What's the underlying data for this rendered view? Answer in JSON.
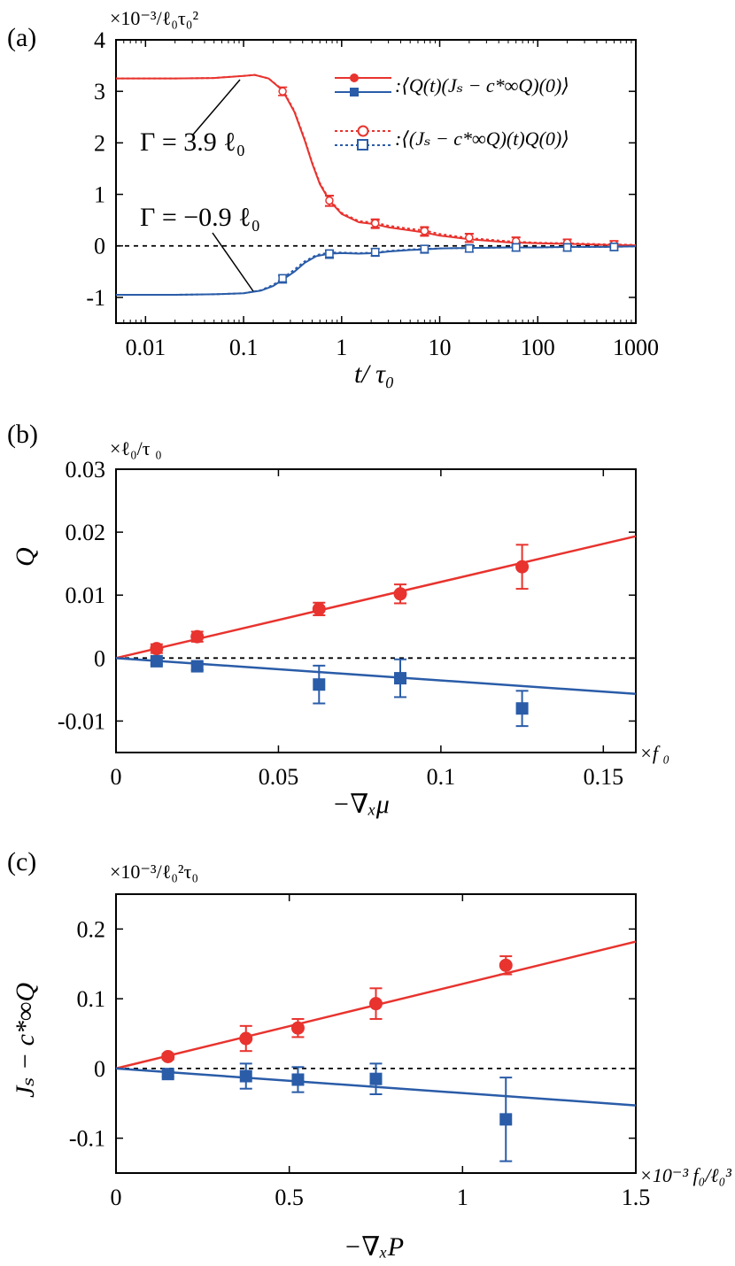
{
  "colors": {
    "red": "#e8332e",
    "blue": "#2a5ca8"
  },
  "chart_data": [
    {
      "panel_label": "(a)",
      "type": "line",
      "unit_label": "×10⁻³/ℓ₀τ₀²",
      "xlabel": "t/ τ₀",
      "xscale": "log",
      "xlim": [
        0.005,
        1000
      ],
      "ylim": [
        -1.5,
        4
      ],
      "xticks": [
        0.01,
        0.1,
        1,
        10,
        100,
        1000
      ],
      "xtick_labels": [
        "0.01",
        "0.1",
        "1",
        "10",
        "100",
        "1000"
      ],
      "yticks": [
        -1,
        0,
        1,
        2,
        3,
        4
      ],
      "ytick_labels": [
        "-1",
        "0",
        "1",
        "2",
        "3",
        "4"
      ],
      "legend": [
        ":⟨Q(t)(Jₛ − c*∞Q)(0)⟩",
        ":⟨(Jₛ − c*∞Q)(t)Q(0)⟩"
      ],
      "annotations": [
        "Γ = 3.9 ℓ₀",
        "Γ = −0.9 ℓ₀"
      ],
      "series": [
        {
          "color": "red",
          "style": "solid",
          "x": [
            0.005,
            0.02,
            0.05,
            0.1,
            0.13,
            0.18,
            0.25,
            0.33,
            0.42,
            0.5,
            0.6,
            0.75,
            1,
            1.5,
            2.2,
            3,
            5,
            7,
            10,
            20,
            50,
            100,
            200,
            500,
            1000
          ],
          "y": [
            3.25,
            3.25,
            3.26,
            3.3,
            3.32,
            3.25,
            3.02,
            2.6,
            2.05,
            1.6,
            1.2,
            0.88,
            0.62,
            0.46,
            0.42,
            0.36,
            0.3,
            0.26,
            0.2,
            0.13,
            0.07,
            0.05,
            0.04,
            0.02,
            0.01
          ],
          "marker_x": [
            0.25,
            0.75,
            2.2,
            7,
            20,
            60,
            200,
            600
          ],
          "marker_y": [
            3.0,
            0.87,
            0.42,
            0.27,
            0.15,
            0.08,
            0.05,
            0.02
          ],
          "marker_err": [
            0.08,
            0.1,
            0.08,
            0.08,
            0.08,
            0.08,
            0.07,
            0.07
          ]
        },
        {
          "color": "red",
          "style": "dotted",
          "x": [
            0.005,
            0.02,
            0.05,
            0.1,
            0.13,
            0.18,
            0.25,
            0.33,
            0.42,
            0.5,
            0.6,
            0.75,
            1,
            1.5,
            2.2,
            3,
            5,
            7,
            10,
            20,
            50,
            100,
            200,
            500,
            1000
          ],
          "y": [
            3.25,
            3.25,
            3.26,
            3.3,
            3.32,
            3.25,
            3.03,
            2.62,
            2.07,
            1.62,
            1.22,
            0.9,
            0.64,
            0.48,
            0.45,
            0.39,
            0.33,
            0.3,
            0.23,
            0.15,
            0.09,
            0.06,
            0.05,
            0.03,
            0.02
          ],
          "marker_x": [
            0.25,
            0.75,
            2.2,
            7,
            20,
            60,
            200,
            600
          ],
          "marker_y": [
            3.0,
            0.88,
            0.44,
            0.29,
            0.16,
            0.09,
            0.06,
            0.03
          ],
          "marker_err": [
            0.08,
            0.1,
            0.08,
            0.08,
            0.08,
            0.08,
            0.07,
            0.07
          ]
        },
        {
          "color": "blue",
          "style": "solid",
          "x": [
            0.005,
            0.02,
            0.05,
            0.1,
            0.15,
            0.2,
            0.25,
            0.33,
            0.42,
            0.55,
            0.75,
            1,
            1.5,
            2.2,
            3,
            5,
            7,
            10,
            20,
            50,
            100,
            200,
            500,
            1000
          ],
          "y": [
            -0.95,
            -0.95,
            -0.94,
            -0.92,
            -0.87,
            -0.78,
            -0.66,
            -0.5,
            -0.33,
            -0.2,
            -0.15,
            -0.14,
            -0.15,
            -0.14,
            -0.11,
            -0.08,
            -0.07,
            -0.05,
            -0.04,
            -0.03,
            -0.03,
            -0.02,
            -0.02,
            -0.01
          ],
          "marker_x": [
            0.25,
            0.75,
            2.2,
            7,
            20,
            60,
            200,
            600
          ],
          "marker_y": [
            -0.65,
            -0.17,
            -0.13,
            -0.07,
            -0.05,
            -0.03,
            -0.03,
            -0.02
          ],
          "marker_err": [
            0.07,
            0.07,
            0.07,
            0.07,
            0.07,
            0.07,
            0.07,
            0.07
          ]
        },
        {
          "color": "blue",
          "style": "dotted",
          "x": [
            0.005,
            0.02,
            0.05,
            0.1,
            0.15,
            0.2,
            0.25,
            0.33,
            0.42,
            0.55,
            0.75,
            1,
            1.5,
            2.2,
            3,
            5,
            7,
            10,
            20,
            50,
            100,
            200,
            500,
            1000
          ],
          "y": [
            -0.95,
            -0.95,
            -0.94,
            -0.92,
            -0.86,
            -0.76,
            -0.63,
            -0.46,
            -0.3,
            -0.18,
            -0.13,
            -0.13,
            -0.14,
            -0.13,
            -0.1,
            -0.07,
            -0.06,
            -0.05,
            -0.04,
            -0.03,
            -0.03,
            -0.02,
            -0.02,
            -0.01
          ],
          "marker_x": [
            0.25,
            0.75,
            2.2,
            7,
            20,
            60,
            200,
            600
          ],
          "marker_y": [
            -0.63,
            -0.15,
            -0.12,
            -0.06,
            -0.05,
            -0.03,
            -0.03,
            -0.02
          ],
          "marker_err": [
            0.07,
            0.07,
            0.07,
            0.07,
            0.07,
            0.07,
            0.07,
            0.07
          ]
        }
      ]
    },
    {
      "panel_label": "(b)",
      "type": "scatter",
      "unit_label": "×ℓ₀/τ ₀",
      "ylabel": "Q",
      "xlabel": "−∇ₓμ",
      "x_unit": "×f ₀",
      "xlim": [
        0,
        0.16
      ],
      "ylim": [
        -0.015,
        0.03
      ],
      "xticks": [
        0,
        0.05,
        0.1,
        0.15
      ],
      "xtick_labels": [
        "0",
        "0.05",
        "0.1",
        "0.15"
      ],
      "yticks": [
        -0.01,
        0,
        0.01,
        0.02,
        0.03
      ],
      "ytick_labels": [
        "-0.01",
        "0",
        "0.01",
        "0.02",
        "0.03"
      ],
      "series": [
        {
          "color": "red",
          "marker": "circle",
          "x": [
            0.0125,
            0.025,
            0.0625,
            0.0875,
            0.125
          ],
          "y": [
            0.0015,
            0.0034,
            0.0078,
            0.0102,
            0.0145
          ],
          "err": [
            0.0007,
            0.0008,
            0.001,
            0.0015,
            0.0035
          ],
          "fit_slope": 0.121
        },
        {
          "color": "blue",
          "marker": "square",
          "x": [
            0.0125,
            0.025,
            0.0625,
            0.0875,
            0.125
          ],
          "y": [
            -0.0005,
            -0.0013,
            -0.0042,
            -0.0032,
            -0.008
          ],
          "err": [
            0.0005,
            0.0006,
            0.003,
            0.003,
            0.0028
          ],
          "fit_slope": -0.0355
        }
      ]
    },
    {
      "panel_label": "(c)",
      "type": "scatter",
      "unit_label": "×10⁻³/ℓ₀²τ₀",
      "ylabel": "Jₛ − c*∞Q",
      "xlabel": "−∇ₓP",
      "x_unit": "×10⁻³ f₀/ℓ₀³",
      "xlim": [
        0,
        1.5
      ],
      "ylim": [
        -0.15,
        0.25
      ],
      "xticks": [
        0,
        0.5,
        1,
        1.5
      ],
      "xtick_labels": [
        "0",
        "0.5",
        "1",
        "1.5"
      ],
      "yticks": [
        -0.1,
        0,
        0.1,
        0.2
      ],
      "ytick_labels": [
        "-0.1",
        "0",
        "0.1",
        "0.2"
      ],
      "series": [
        {
          "color": "red",
          "marker": "circle",
          "x": [
            0.15,
            0.375,
            0.525,
            0.75,
            1.125
          ],
          "y": [
            0.017,
            0.043,
            0.058,
            0.093,
            0.148
          ],
          "err": [
            0.004,
            0.018,
            0.013,
            0.022,
            0.013
          ],
          "fit_slope": 0.1213
        },
        {
          "color": "blue",
          "marker": "square",
          "x": [
            0.15,
            0.375,
            0.525,
            0.75,
            1.125
          ],
          "y": [
            -0.008,
            -0.011,
            -0.016,
            -0.015,
            -0.073
          ],
          "err": [
            0.004,
            0.018,
            0.018,
            0.022,
            0.06
          ],
          "fit_slope": -0.0353
        }
      ]
    }
  ]
}
